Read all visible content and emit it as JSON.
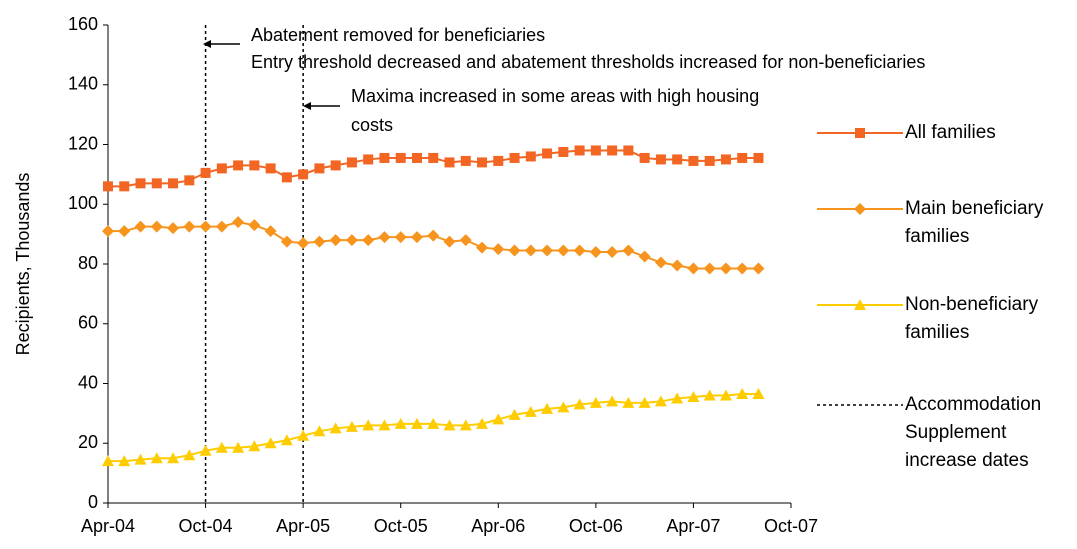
{
  "chart_data": {
    "type": "line",
    "y_label": "Recipients, Thousands",
    "categories": [
      "Apr-04",
      null,
      null,
      null,
      null,
      null,
      "Oct-04",
      null,
      null,
      null,
      null,
      null,
      "Apr-05",
      null,
      null,
      null,
      null,
      null,
      "Oct-05",
      null,
      null,
      null,
      null,
      null,
      "Apr-06",
      null,
      null,
      null,
      null,
      null,
      "Oct-06",
      null,
      null,
      null,
      null,
      null,
      "Apr-07",
      null,
      null,
      null,
      null,
      null,
      "Oct-07"
    ],
    "series": [
      {
        "name": "All families",
        "color": "#f26522",
        "marker": "square",
        "values": [
          106,
          106,
          107,
          107,
          107,
          108,
          110.5,
          112,
          113,
          113,
          112,
          109,
          110,
          112,
          113,
          114,
          115,
          115.5,
          115.5,
          115.5,
          115.5,
          114,
          114.5,
          114,
          114.5,
          115.5,
          116,
          117,
          117.5,
          118,
          118,
          118,
          118,
          115.5,
          115,
          115,
          114.5,
          114.5,
          115,
          115.5,
          115.5,
          null,
          null
        ]
      },
      {
        "name": "Main beneficiary families",
        "color": "#f7941d",
        "marker": "diamond",
        "values": [
          91,
          91,
          92.5,
          92.5,
          92,
          92.5,
          92.5,
          92.5,
          94,
          93,
          91,
          87.5,
          87,
          87.5,
          88,
          88,
          88,
          89,
          89,
          89,
          89.5,
          87.5,
          88,
          85.5,
          85,
          84.5,
          84.5,
          84.5,
          84.5,
          84.5,
          84,
          84,
          84.5,
          82.5,
          80.5,
          79.5,
          78.5,
          78.5,
          78.5,
          78.5,
          78.5,
          null,
          null
        ]
      },
      {
        "name": "Non-beneficiary families",
        "color": "#ffcc00",
        "marker": "triangle",
        "values": [
          14,
          14,
          14.5,
          15,
          15,
          16,
          17.5,
          18.5,
          18.5,
          19,
          20,
          21,
          22.5,
          24,
          25,
          25.5,
          26,
          26,
          26.5,
          26.5,
          26.5,
          26,
          26,
          26.5,
          28,
          29.5,
          30.5,
          31.5,
          32,
          33,
          33.5,
          34,
          33.5,
          33.5,
          34,
          35,
          35.5,
          36,
          36,
          36.5,
          36.5,
          null,
          null
        ]
      }
    ],
    "event_lines": {
      "name": "Accommodation Supplement increase dates",
      "color": "#000000",
      "at": [
        "Oct-04",
        "Apr-05"
      ]
    },
    "annotations": [
      {
        "lines": [
          "Abatement removed for beneficiaries",
          "Entry threshold decreased and abatement thresholds increased for non-beneficiaries"
        ]
      },
      {
        "lines": [
          "Maxima increased in some areas with high housing",
          "costs"
        ]
      }
    ],
    "ylim": [
      0,
      160
    ],
    "yticks": [
      0,
      20,
      40,
      60,
      80,
      100,
      120,
      140,
      160
    ],
    "grid": false
  }
}
